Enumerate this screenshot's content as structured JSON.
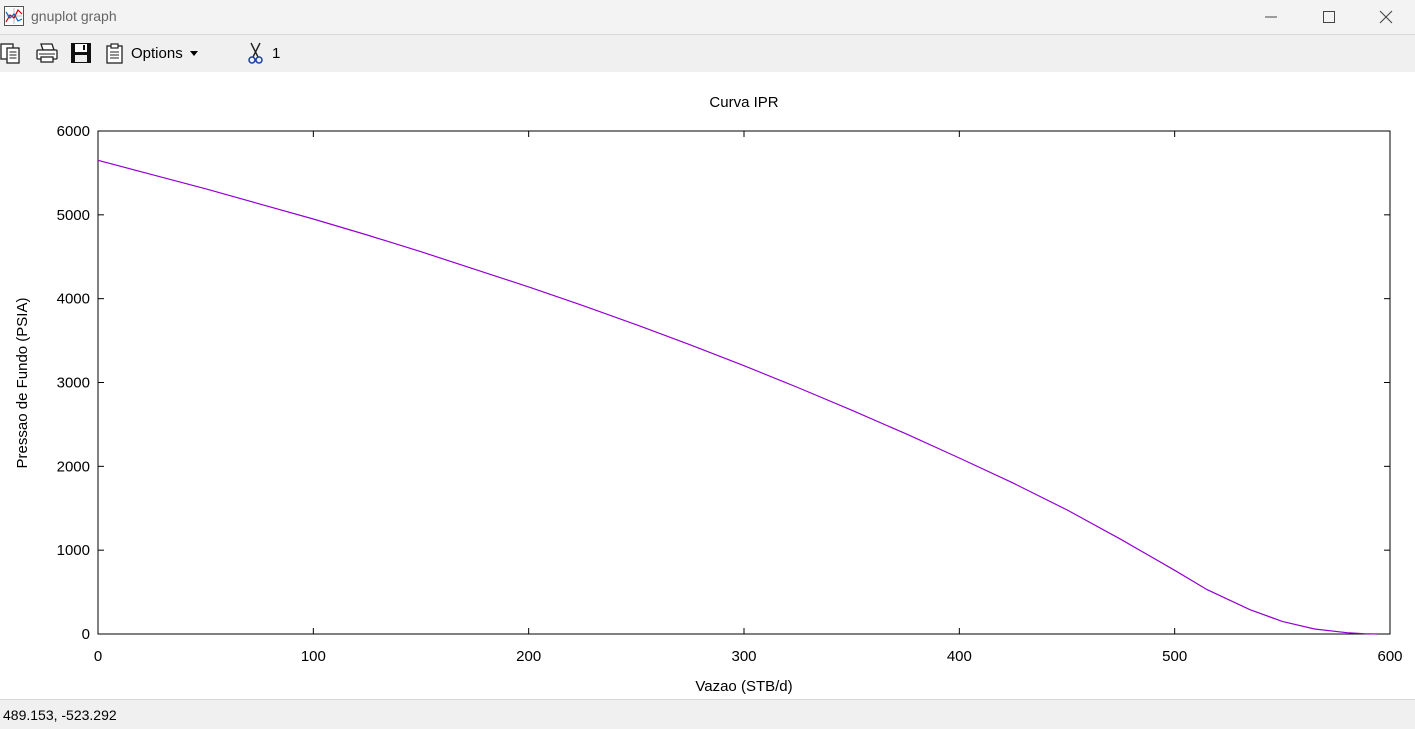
{
  "window": {
    "title": "gnuplot graph"
  },
  "toolbar": {
    "options_label": "Options",
    "cut_label": "1"
  },
  "statusbar": {
    "coords": "489.153, -523.292"
  },
  "colors": {
    "series": "#9400d3",
    "axis": "#000000"
  },
  "chart_data": {
    "type": "line",
    "title": "Curva IPR",
    "xlabel": "Vazao (STB/d)",
    "ylabel": "Pressao de Fundo (PSIA)",
    "xlim": [
      0,
      600
    ],
    "ylim": [
      0,
      6000
    ],
    "xticks": [
      0,
      100,
      200,
      300,
      400,
      500,
      600
    ],
    "yticks": [
      0,
      1000,
      2000,
      3000,
      4000,
      5000,
      6000
    ],
    "grid": false,
    "series": [
      {
        "x": [
          0,
          25,
          50,
          75,
          100,
          125,
          150,
          175,
          200,
          225,
          250,
          275,
          300,
          325,
          350,
          375,
          400,
          425,
          450,
          475,
          500,
          515,
          535,
          550,
          565,
          580,
          588,
          594
        ],
        "y": [
          5650,
          5480,
          5310,
          5130,
          4950,
          4760,
          4560,
          4350,
          4140,
          3920,
          3690,
          3450,
          3200,
          2940,
          2670,
          2390,
          2100,
          1800,
          1480,
          1130,
          760,
          530,
          290,
          150,
          60,
          15,
          3,
          0
        ]
      }
    ]
  }
}
